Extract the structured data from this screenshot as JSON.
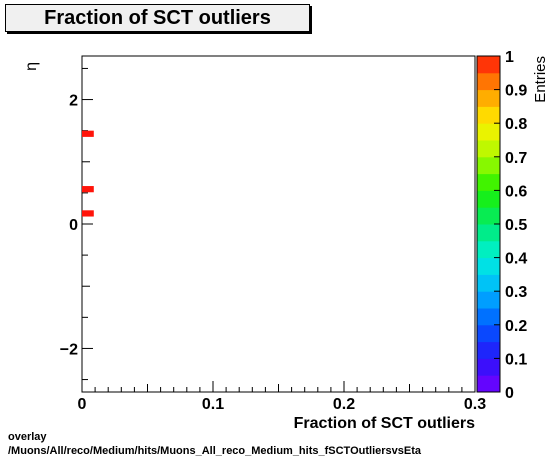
{
  "chart_data": {
    "type": "heatmap",
    "title": "Fraction of SCT outliers",
    "xlabel": "Fraction of SCT outliers",
    "ylabel": "η",
    "zlabel": "Entries",
    "xlim": [
      0,
      0.3
    ],
    "ylim": [
      -2.7,
      2.7
    ],
    "zlim": [
      0,
      1
    ],
    "x_ticks": [
      "0",
      "0.1",
      "0.2",
      "0.3"
    ],
    "y_ticks": [
      "−2",
      "0",
      "2"
    ],
    "z_ticks": [
      "0",
      "0.1",
      "0.2",
      "0.3",
      "0.4",
      "0.5",
      "0.6",
      "0.7",
      "0.8",
      "0.9",
      "1"
    ],
    "cells": [
      {
        "x0": 0.0,
        "x1": 0.009,
        "y0": 1.4,
        "y1": 1.5,
        "value": 1
      },
      {
        "x0": 0.0,
        "x1": 0.009,
        "y0": 0.51,
        "y1": 0.61,
        "value": 1
      },
      {
        "x0": 0.0,
        "x1": 0.009,
        "y0": 0.12,
        "y1": 0.22,
        "value": 1
      }
    ],
    "grid": false
  },
  "footer": {
    "line1": "overlay",
    "line2": "/Muons/All/reco/Medium/hits/Muons_All_reco_Medium_hits_fSCTOutliersvsEta"
  }
}
